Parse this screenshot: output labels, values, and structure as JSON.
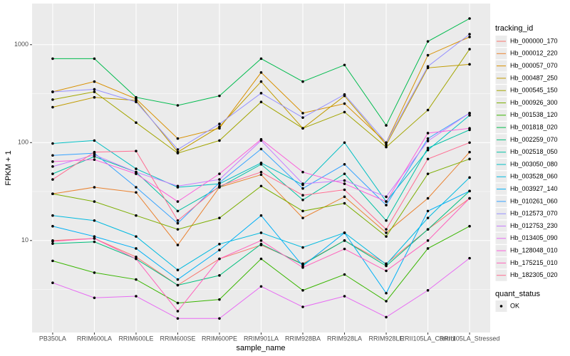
{
  "chart_data": {
    "type": "line",
    "log_y": true,
    "grid": true,
    "x_label": "sample_name",
    "y_label": "FPKM + 1",
    "legend_title": "tracking_id",
    "shape_legend_title": "quant_status",
    "shape_legend_labels": [
      "OK"
    ],
    "point_color": "#000000",
    "categories": [
      "PB350LA",
      "RRIM600LA",
      "RRIM600LE",
      "RRIM600SE",
      "RRIM600PE",
      "RRIM901LA",
      "RRIM928BA",
      "RRIM928LA",
      "RRIM928LE",
      "RRII105LA_Control",
      "RRII105LA_Stressed"
    ],
    "ylim": [
      1.15,
      2630
    ],
    "yticks": [
      10,
      100,
      1000
    ],
    "series": [
      {
        "name": "Hb_000000_170",
        "color": "#F8766D",
        "values": [
          10,
          10.5,
          6.8,
          3.5,
          6.5,
          9,
          5.8,
          10,
          5.8,
          13,
          27
        ]
      },
      {
        "name": "Hb_000012_220",
        "color": "#EA8331",
        "values": [
          30,
          35,
          31,
          9,
          35,
          47,
          17,
          28,
          12,
          27,
          80
        ]
      },
      {
        "name": "Hb_000057_070",
        "color": "#D89000",
        "values": [
          330,
          420,
          280,
          110,
          140,
          520,
          200,
          250,
          100,
          780,
          1200
        ]
      },
      {
        "name": "Hb_000487_250",
        "color": "#C09B00",
        "values": [
          230,
          290,
          270,
          80,
          145,
          420,
          140,
          300,
          95,
          580,
          630
        ]
      },
      {
        "name": "Hb_000545_150",
        "color": "#A3A500",
        "values": [
          275,
          330,
          160,
          78,
          105,
          260,
          140,
          205,
          90,
          215,
          900
        ]
      },
      {
        "name": "Hb_000926_300",
        "color": "#7CAE00",
        "values": [
          30,
          25,
          18,
          13,
          17,
          36,
          20,
          24,
          11,
          48,
          68
        ]
      },
      {
        "name": "Hb_001538_120",
        "color": "#39B600",
        "values": [
          6.2,
          4.7,
          4,
          2.3,
          2.5,
          6.5,
          3.1,
          4.5,
          2.4,
          8.3,
          14
        ]
      },
      {
        "name": "Hb_001818_020",
        "color": "#00BB4E",
        "values": [
          720,
          720,
          290,
          240,
          300,
          720,
          420,
          620,
          150,
          1080,
          1850
        ]
      },
      {
        "name": "Hb_002259_070",
        "color": "#00BF7D",
        "values": [
          9.3,
          9.7,
          6.5,
          3.5,
          4.4,
          9.2,
          5.7,
          10,
          5.5,
          13,
          32
        ]
      },
      {
        "name": "Hb_002518_050",
        "color": "#00C1A3",
        "values": [
          48,
          72,
          50,
          20,
          35,
          60,
          26,
          48,
          16,
          88,
          135
        ]
      },
      {
        "name": "Hb_003050_080",
        "color": "#00BFC4",
        "values": [
          98,
          105,
          54,
          35,
          38,
          62,
          37,
          100,
          25,
          84,
          190
        ]
      },
      {
        "name": "Hb_003528_060",
        "color": "#00BAE0",
        "values": [
          18,
          16,
          11,
          5,
          9.2,
          12,
          8.5,
          12,
          5.7,
          17,
          44
        ]
      },
      {
        "name": "Hb_003927_140",
        "color": "#00B0F6",
        "values": [
          14,
          11,
          8.3,
          4,
          8,
          18,
          5.5,
          12,
          2.9,
          20,
          32
        ]
      },
      {
        "name": "Hb_010261_060",
        "color": "#35A2FF",
        "values": [
          74,
          78,
          35,
          15,
          39,
          86,
          34,
          60,
          23,
          110,
          200
        ]
      },
      {
        "name": "Hb_012573_070",
        "color": "#9590FF",
        "values": [
          330,
          350,
          260,
          85,
          155,
          320,
          180,
          310,
          100,
          600,
          1280
        ]
      },
      {
        "name": "Hb_012753_230",
        "color": "#C77CFF",
        "values": [
          57,
          75,
          50,
          36,
          42,
          105,
          38,
          41,
          28,
          104,
          200
        ]
      },
      {
        "name": "Hb_013405_090",
        "color": "#E76BF3",
        "values": [
          3.7,
          2.6,
          2.7,
          1.6,
          1.6,
          3.4,
          2.1,
          2.7,
          1.65,
          3.1,
          6.6
        ]
      },
      {
        "name": "Hb_128048_010",
        "color": "#FA62DB",
        "values": [
          64,
          67,
          48,
          25,
          48,
          108,
          50,
          38,
          25,
          125,
          140
        ]
      },
      {
        "name": "Hb_175215_010",
        "color": "#FF62BC",
        "values": [
          9.8,
          10.5,
          6.5,
          1.9,
          6.5,
          10,
          5.3,
          8.2,
          4.9,
          10,
          27
        ]
      },
      {
        "name": "Hb_182305_020",
        "color": "#FF6C91",
        "values": [
          42,
          80,
          82,
          16,
          36,
          50,
          29,
          33,
          13,
          68,
          100
        ]
      }
    ]
  }
}
